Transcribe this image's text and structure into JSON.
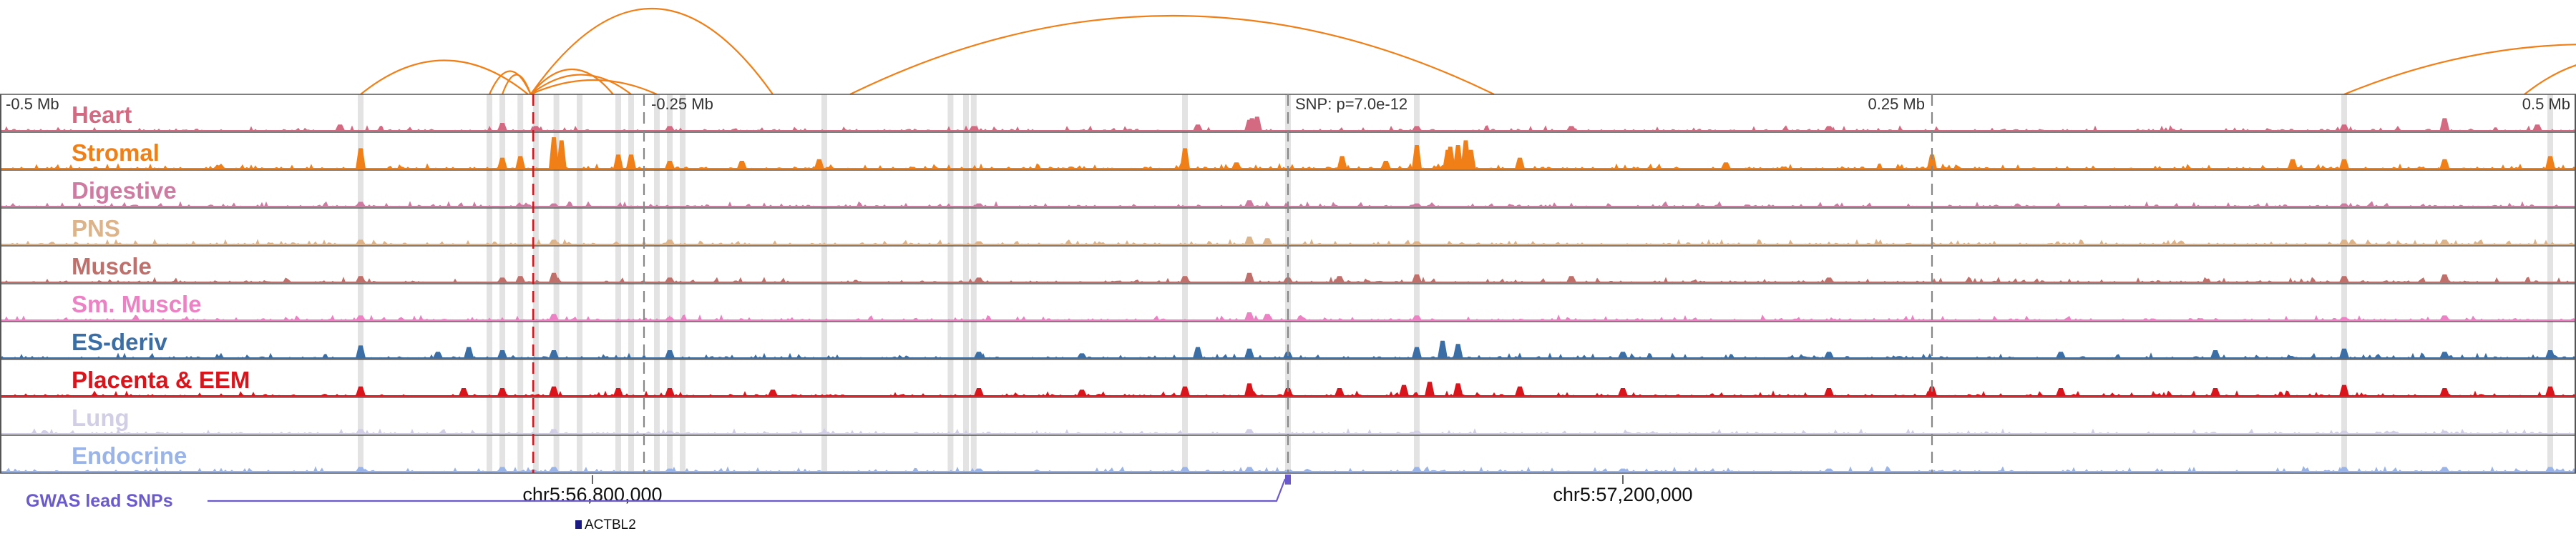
{
  "chart_data": {
    "type": "area",
    "title": "",
    "x_range": [
      -0.5,
      0.5
    ],
    "x_unit": "Mb",
    "axis_labels": [
      "-0.5 Mb",
      "-0.25 Mb",
      "0.25 Mb",
      "0.5 Mb"
    ],
    "axis_positions": [
      -0.5,
      -0.25,
      0.25,
      0.5
    ],
    "snp_label": "SNP: p=7.0e-12",
    "snp_position": 0.0,
    "chrom_ticks": [
      {
        "label": "chr5:56,800,000",
        "position": -0.27
      },
      {
        "label": "chr5:57,200,000",
        "position": 0.13
      }
    ],
    "gwas_label": "GWAS lead SNPs",
    "gene": {
      "name": "ACTBL2",
      "position": -0.275
    },
    "lead_snp_line": -0.293,
    "highlight_positions": [
      -0.36,
      -0.31,
      -0.305,
      -0.298,
      -0.292,
      -0.284,
      -0.275,
      -0.26,
      -0.255,
      -0.245,
      -0.24,
      -0.235,
      -0.18,
      -0.131,
      -0.125,
      -0.122,
      -0.04,
      0.0,
      0.05,
      0.41,
      0.49
    ],
    "dashed_positions": [
      -0.25,
      0.0,
      0.25
    ],
    "arcs": [
      {
        "from": -0.36,
        "to": -0.295,
        "h": 0.95
      },
      {
        "from": -0.31,
        "to": -0.294,
        "h": 0.65
      },
      {
        "from": -0.305,
        "to": -0.294,
        "h": 0.55
      },
      {
        "from": -0.294,
        "to": -0.262,
        "h": 0.7
      },
      {
        "from": -0.294,
        "to": -0.255,
        "h": 0.55
      },
      {
        "from": -0.294,
        "to": -0.245,
        "h": 0.4
      },
      {
        "from": -0.294,
        "to": -0.2,
        "h": 2.4
      },
      {
        "from": -0.17,
        "to": 0.08,
        "h": 2.2
      },
      {
        "from": 0.41,
        "to": 0.6,
        "h": 1.4
      },
      {
        "from": 0.48,
        "to": 0.55,
        "h": 1.0
      }
    ],
    "series": [
      {
        "name": "Heart",
        "color": "#d46a82",
        "peaks": [
          [
            -0.368,
            0.4
          ],
          [
            -0.305,
            0.5
          ],
          [
            -0.292,
            0.3
          ],
          [
            -0.24,
            0.3
          ],
          [
            -0.122,
            0.3
          ],
          [
            -0.035,
            0.4
          ],
          [
            -0.015,
            0.7
          ],
          [
            -0.014,
            0.8
          ],
          [
            -0.012,
            0.9
          ],
          [
            0.05,
            0.3
          ],
          [
            0.11,
            0.3
          ],
          [
            0.21,
            0.3
          ],
          [
            0.41,
            0.4
          ],
          [
            0.449,
            0.8
          ],
          [
            0.485,
            0.4
          ]
        ]
      },
      {
        "name": "Stromal",
        "color": "#f07f18",
        "peaks": [
          [
            -0.36,
            1.3
          ],
          [
            -0.305,
            0.7
          ],
          [
            -0.298,
            0.8
          ],
          [
            -0.285,
            2.0
          ],
          [
            -0.282,
            1.8
          ],
          [
            -0.26,
            0.9
          ],
          [
            -0.255,
            0.9
          ],
          [
            -0.26,
            0.7
          ],
          [
            -0.24,
            0.5
          ],
          [
            -0.212,
            0.5
          ],
          [
            -0.182,
            0.6
          ],
          [
            -0.04,
            1.3
          ],
          [
            -0.02,
            0.4
          ],
          [
            0.021,
            0.8
          ],
          [
            0.038,
            0.5
          ],
          [
            0.05,
            1.5
          ],
          [
            0.062,
            1.2
          ],
          [
            0.063,
            1.4
          ],
          [
            0.066,
            1.5
          ],
          [
            0.069,
            1.8
          ],
          [
            0.071,
            1.2
          ],
          [
            0.09,
            0.7
          ],
          [
            0.17,
            0.4
          ],
          [
            0.25,
            0.9
          ],
          [
            0.39,
            0.6
          ],
          [
            0.41,
            0.6
          ],
          [
            0.449,
            0.6
          ],
          [
            0.49,
            0.8
          ]
        ]
      },
      {
        "name": "Digestive",
        "color": "#cf7aa1",
        "peaks": [
          [
            -0.36,
            0.3
          ],
          [
            -0.285,
            0.2
          ],
          [
            -0.12,
            0.2
          ],
          [
            -0.015,
            0.4
          ],
          [
            0.05,
            0.2
          ],
          [
            0.41,
            0.2
          ]
        ]
      },
      {
        "name": "PNS",
        "color": "#ddb38a",
        "peaks": [
          [
            -0.36,
            0.3
          ],
          [
            -0.285,
            0.3
          ],
          [
            -0.24,
            0.3
          ],
          [
            -0.12,
            0.2
          ],
          [
            -0.015,
            0.5
          ],
          [
            -0.008,
            0.4
          ],
          [
            0.05,
            0.2
          ],
          [
            0.41,
            0.3
          ],
          [
            0.449,
            0.3
          ]
        ]
      },
      {
        "name": "Muscle",
        "color": "#c06f6a",
        "peaks": [
          [
            -0.36,
            0.4
          ],
          [
            -0.305,
            0.3
          ],
          [
            -0.298,
            0.4
          ],
          [
            -0.285,
            0.6
          ],
          [
            -0.24,
            0.3
          ],
          [
            -0.12,
            0.3
          ],
          [
            -0.04,
            0.4
          ],
          [
            -0.015,
            0.6
          ],
          [
            0.0,
            0.3
          ],
          [
            0.02,
            0.4
          ],
          [
            0.05,
            0.5
          ],
          [
            0.11,
            0.4
          ],
          [
            0.21,
            0.3
          ],
          [
            0.41,
            0.4
          ],
          [
            0.449,
            0.5
          ]
        ]
      },
      {
        "name": "Sm. Muscle",
        "color": "#ec82c3",
        "peaks": [
          [
            -0.36,
            0.3
          ],
          [
            -0.285,
            0.4
          ],
          [
            -0.24,
            0.2
          ],
          [
            -0.015,
            0.5
          ],
          [
            -0.008,
            0.4
          ],
          [
            0.05,
            0.3
          ],
          [
            0.41,
            0.2
          ],
          [
            0.449,
            0.3
          ]
        ]
      },
      {
        "name": "ES-deriv",
        "color": "#3a6ea5",
        "peaks": [
          [
            -0.36,
            0.8
          ],
          [
            -0.33,
            0.4
          ],
          [
            -0.318,
            0.7
          ],
          [
            -0.305,
            0.5
          ],
          [
            -0.285,
            0.5
          ],
          [
            -0.24,
            0.5
          ],
          [
            -0.12,
            0.4
          ],
          [
            -0.08,
            0.3
          ],
          [
            -0.035,
            0.7
          ],
          [
            -0.015,
            0.6
          ],
          [
            0.0,
            0.4
          ],
          [
            0.05,
            0.7
          ],
          [
            0.06,
            1.1
          ],
          [
            0.066,
            0.9
          ],
          [
            0.13,
            0.4
          ],
          [
            0.21,
            0.4
          ],
          [
            0.3,
            0.4
          ],
          [
            0.36,
            0.5
          ],
          [
            0.41,
            0.6
          ],
          [
            0.449,
            0.4
          ],
          [
            0.49,
            0.5
          ]
        ]
      },
      {
        "name": "Placenta & EEM",
        "color": "#d9141b",
        "peaks": [
          [
            -0.36,
            0.6
          ],
          [
            -0.32,
            0.5
          ],
          [
            -0.305,
            0.5
          ],
          [
            -0.285,
            0.6
          ],
          [
            -0.26,
            0.5
          ],
          [
            -0.24,
            0.5
          ],
          [
            -0.2,
            0.4
          ],
          [
            -0.12,
            0.5
          ],
          [
            -0.08,
            0.4
          ],
          [
            -0.04,
            0.6
          ],
          [
            -0.015,
            0.8
          ],
          [
            0.0,
            0.5
          ],
          [
            0.02,
            0.5
          ],
          [
            0.045,
            0.7
          ],
          [
            0.055,
            0.9
          ],
          [
            0.066,
            0.8
          ],
          [
            0.09,
            0.6
          ],
          [
            0.13,
            0.5
          ],
          [
            0.21,
            0.5
          ],
          [
            0.25,
            0.6
          ],
          [
            0.3,
            0.5
          ],
          [
            0.36,
            0.5
          ],
          [
            0.41,
            0.7
          ],
          [
            0.449,
            0.5
          ],
          [
            0.49,
            0.6
          ]
        ]
      },
      {
        "name": "Lung",
        "color": "#d2cee6",
        "peaks": [
          [
            -0.36,
            0.3
          ],
          [
            -0.285,
            0.3
          ],
          [
            -0.24,
            0.2
          ],
          [
            -0.015,
            0.3
          ],
          [
            0.05,
            0.2
          ],
          [
            0.41,
            0.2
          ],
          [
            0.449,
            0.2
          ]
        ]
      },
      {
        "name": "Endocrine",
        "color": "#9bb4e8",
        "peaks": [
          [
            -0.36,
            0.3
          ],
          [
            -0.305,
            0.3
          ],
          [
            -0.285,
            0.3
          ],
          [
            -0.24,
            0.2
          ],
          [
            -0.12,
            0.2
          ],
          [
            -0.04,
            0.3
          ],
          [
            -0.015,
            0.3
          ],
          [
            0.05,
            0.3
          ],
          [
            0.13,
            0.2
          ],
          [
            0.21,
            0.2
          ],
          [
            0.41,
            0.3
          ],
          [
            0.449,
            0.3
          ],
          [
            0.49,
            0.3
          ]
        ]
      }
    ]
  }
}
